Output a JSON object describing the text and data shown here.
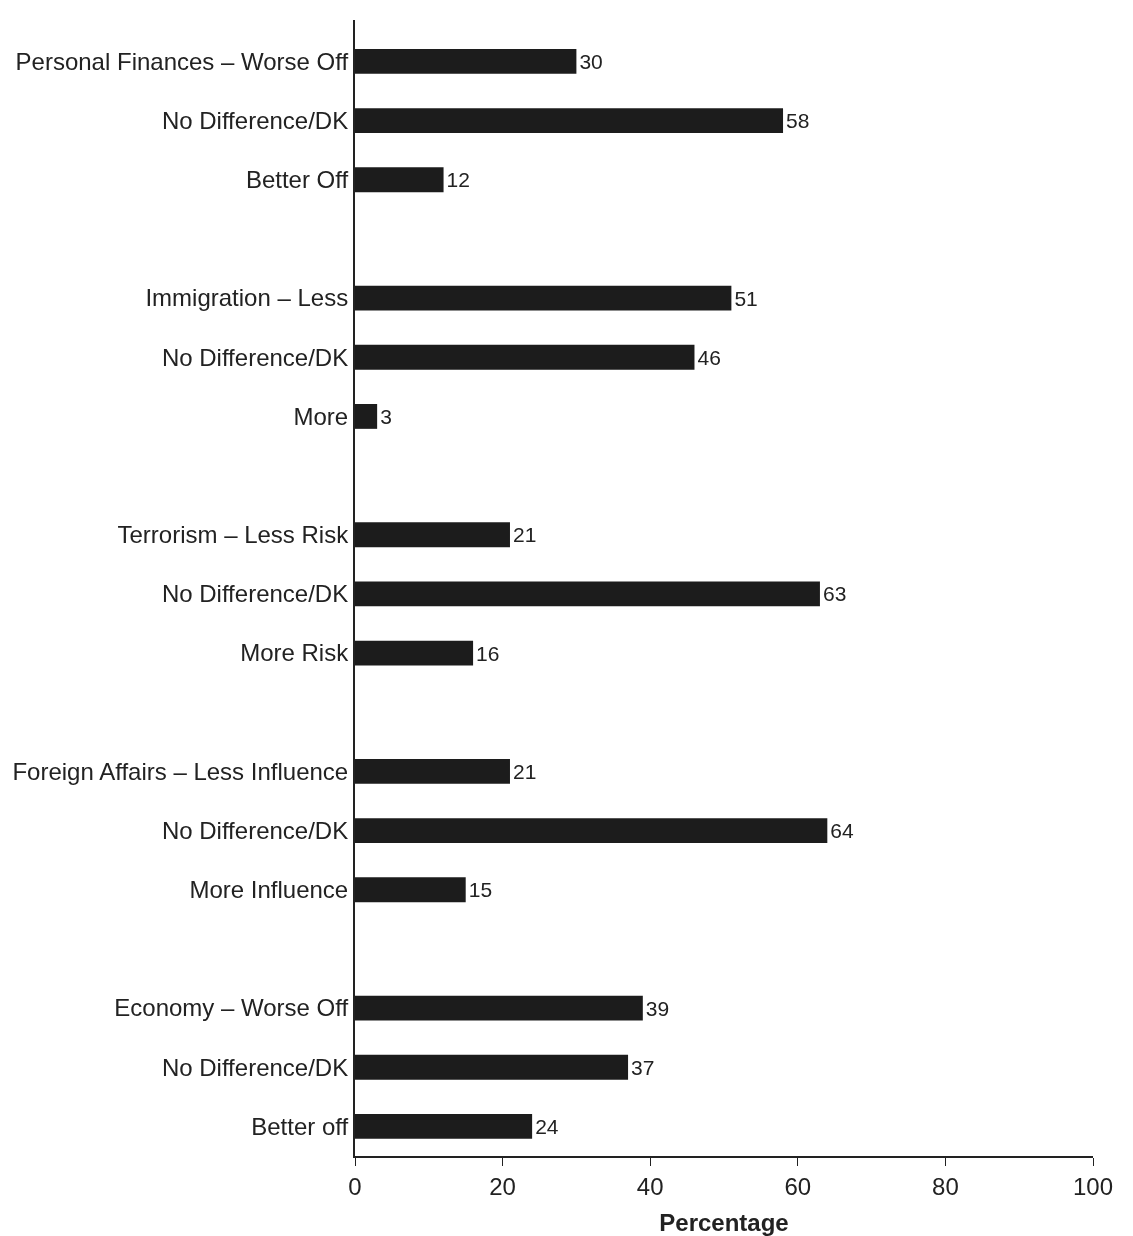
{
  "chart_data": {
    "type": "bar",
    "orientation": "horizontal",
    "xlabel": "Percentage",
    "categories": [
      "Personal Finances – Worse Off",
      "No Difference/DK",
      "Better Off",
      null,
      "Immigration – Less",
      "No Difference/DK",
      "More",
      null,
      "Terrorism – Less Risk",
      "No Difference/DK",
      "More Risk",
      null,
      "Foreign Affairs – Less Influence",
      "No Difference/DK",
      "More Influence",
      null,
      "Economy – Worse Off",
      "No Difference/DK",
      "Better off"
    ],
    "values": [
      30,
      58,
      12,
      null,
      51,
      46,
      3,
      null,
      21,
      63,
      16,
      null,
      21,
      64,
      15,
      null,
      39,
      37,
      24
    ],
    "color": "#1c1c1c",
    "xlim": [
      0,
      100
    ],
    "xticks": [
      0,
      20,
      40,
      60,
      80,
      100
    ],
    "data_labels": true
  }
}
